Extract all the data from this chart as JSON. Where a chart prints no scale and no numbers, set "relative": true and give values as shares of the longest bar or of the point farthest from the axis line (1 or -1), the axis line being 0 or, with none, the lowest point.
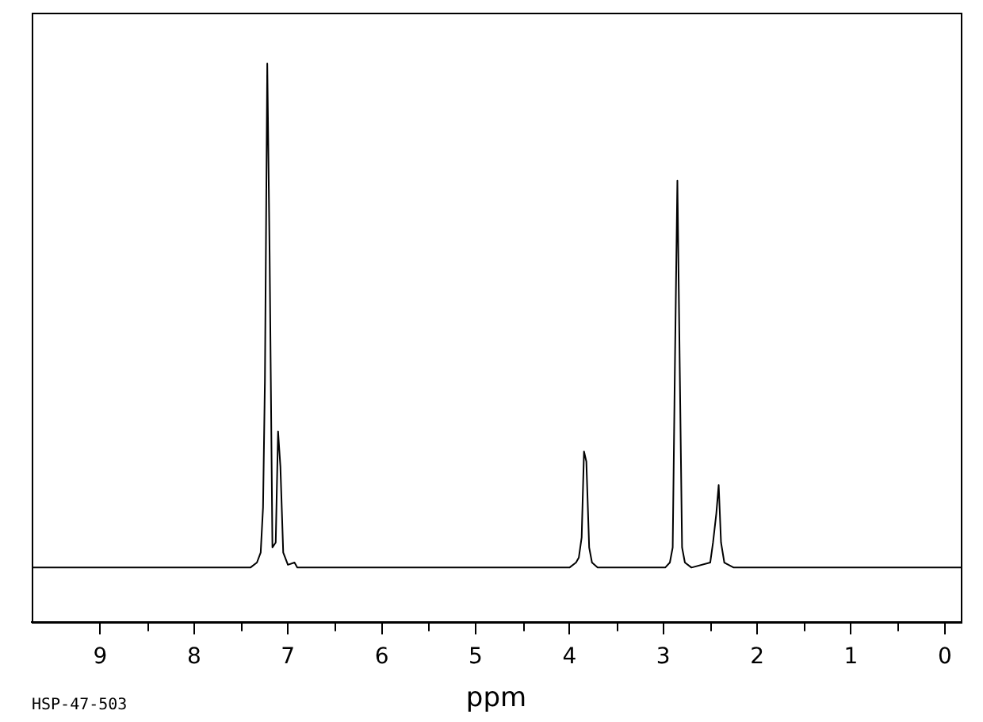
{
  "chart_data": {
    "type": "line",
    "xlabel": "ppm",
    "relative": true,
    "color": "#000000",
    "marker": "none",
    "grid": false,
    "legend": false,
    "tick_labels": "x",
    "xlim": [
      9.73,
      -0.17
    ],
    "xticks": [
      9,
      8,
      7,
      6,
      5,
      4,
      3,
      2,
      1,
      0
    ],
    "x": [
      9.73,
      7.4,
      7.33,
      7.29,
      7.265,
      7.245,
      7.22,
      7.195,
      7.165,
      7.13,
      7.105,
      7.08,
      7.05,
      7.0,
      6.93,
      6.9,
      4.0,
      3.93,
      3.9,
      3.87,
      3.845,
      3.82,
      3.79,
      3.76,
      3.7,
      2.98,
      2.93,
      2.9,
      2.875,
      2.85,
      2.825,
      2.8,
      2.77,
      2.7,
      2.5,
      2.47,
      2.435,
      2.41,
      2.385,
      2.35,
      2.25,
      -0.17
    ],
    "values": [
      0.097,
      0.097,
      0.106,
      0.124,
      0.205,
      0.431,
      1,
      0.657,
      0.133,
      0.142,
      0.341,
      0.278,
      0.124,
      0.102,
      0.106,
      0.097,
      0.097,
      0.106,
      0.115,
      0.151,
      0.305,
      0.287,
      0.133,
      0.106,
      0.097,
      0.097,
      0.106,
      0.133,
      0.476,
      0.79,
      0.458,
      0.133,
      0.106,
      0.097,
      0.106,
      0.142,
      0.194,
      0.245,
      0.142,
      0.106,
      0.097,
      0.097
    ],
    "annotations": [
      "HSP-47-503"
    ]
  }
}
